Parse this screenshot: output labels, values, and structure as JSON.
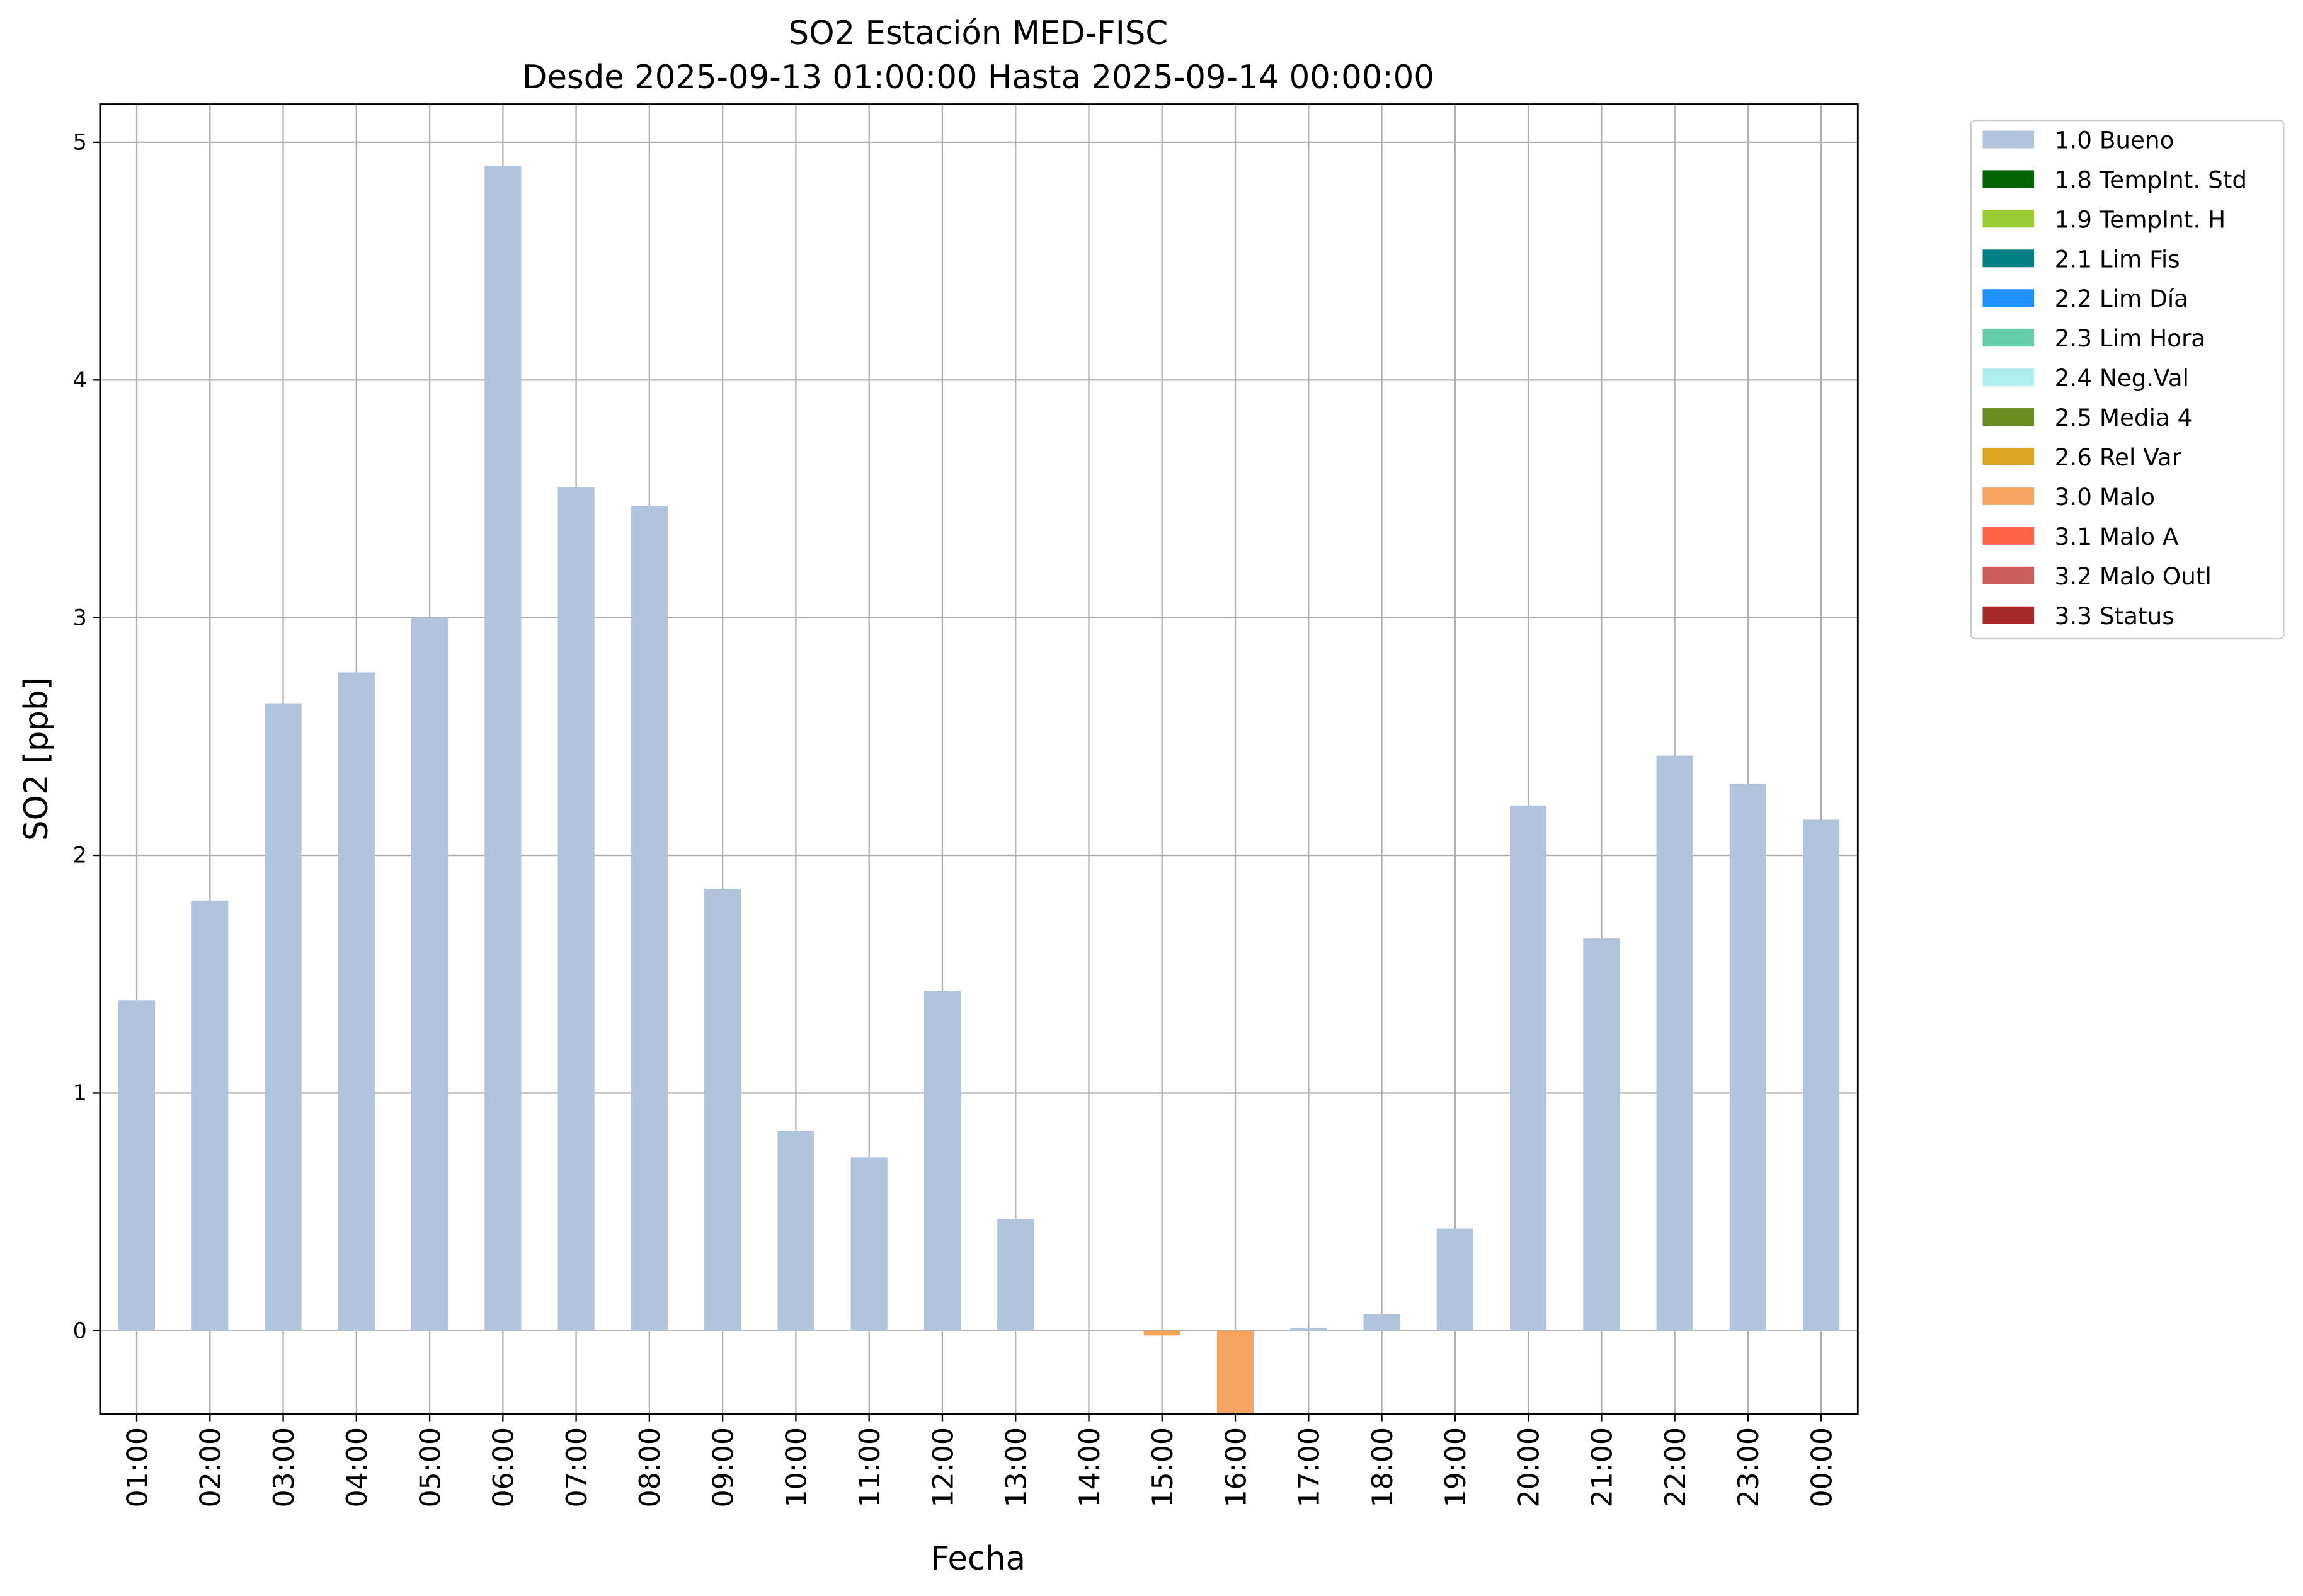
{
  "chart_data": {
    "type": "bar",
    "stacked": true,
    "title": "SO2 Estación MED-FISC",
    "subtitle": "Desde 2025-09-13 01:00:00 Hasta 2025-09-14 00:00:00",
    "x_label": "Fecha",
    "y_label": "SO2 [ppb]",
    "categories": [
      "01:00",
      "02:00",
      "03:00",
      "04:00",
      "05:00",
      "06:00",
      "07:00",
      "08:00",
      "09:00",
      "10:00",
      "11:00",
      "12:00",
      "13:00",
      "14:00",
      "15:00",
      "16:00",
      "17:00",
      "18:00",
      "19:00",
      "20:00",
      "21:00",
      "22:00",
      "23:00",
      "00:00"
    ],
    "ylim": [
      -0.35,
      5.16
    ],
    "yticks": [
      0,
      1,
      2,
      3,
      4,
      5
    ],
    "grid": true,
    "legend": "outside right",
    "series": [
      {
        "name": "1.0 Bueno",
        "color": "#b0c4de",
        "values": [
          1.39,
          1.81,
          2.64,
          2.77,
          3.0,
          4.9,
          3.55,
          3.47,
          1.86,
          0.84,
          0.73,
          1.43,
          0.47,
          null,
          null,
          null,
          0.01,
          0.07,
          0.43,
          2.21,
          1.65,
          2.42,
          2.3,
          2.15
        ]
      },
      {
        "name": "1.8 TempInt. Std",
        "color": "#006400",
        "values": [
          null,
          null,
          null,
          null,
          null,
          null,
          null,
          null,
          null,
          null,
          null,
          null,
          null,
          null,
          null,
          null,
          null,
          null,
          null,
          null,
          null,
          null,
          null,
          null
        ]
      },
      {
        "name": "1.9 TempInt. H",
        "color": "#9acd32",
        "values": [
          null,
          null,
          null,
          null,
          null,
          null,
          null,
          null,
          null,
          null,
          null,
          null,
          null,
          null,
          null,
          null,
          null,
          null,
          null,
          null,
          null,
          null,
          null,
          null
        ]
      },
      {
        "name": "2.1 Lim Fis",
        "color": "#008080",
        "values": [
          null,
          null,
          null,
          null,
          null,
          null,
          null,
          null,
          null,
          null,
          null,
          null,
          null,
          null,
          null,
          null,
          null,
          null,
          null,
          null,
          null,
          null,
          null,
          null
        ]
      },
      {
        "name": "2.2 Lim Día",
        "color": "#1e90ff",
        "values": [
          null,
          null,
          null,
          null,
          null,
          null,
          null,
          null,
          null,
          null,
          null,
          null,
          null,
          null,
          null,
          null,
          null,
          null,
          null,
          null,
          null,
          null,
          null,
          null
        ]
      },
      {
        "name": "2.3 Lim Hora",
        "color": "#66cdaa",
        "values": [
          null,
          null,
          null,
          null,
          null,
          null,
          null,
          null,
          null,
          null,
          null,
          null,
          null,
          null,
          null,
          null,
          null,
          null,
          null,
          null,
          null,
          null,
          null,
          null
        ]
      },
      {
        "name": "2.4 Neg.Val",
        "color": "#afeeee",
        "values": [
          null,
          null,
          null,
          null,
          null,
          null,
          null,
          null,
          null,
          null,
          null,
          null,
          null,
          null,
          null,
          null,
          null,
          null,
          null,
          null,
          null,
          null,
          null,
          null
        ]
      },
      {
        "name": "2.5 Media 4",
        "color": "#6b8e23",
        "values": [
          null,
          null,
          null,
          null,
          null,
          null,
          null,
          null,
          null,
          null,
          null,
          null,
          null,
          null,
          null,
          null,
          null,
          null,
          null,
          null,
          null,
          null,
          null,
          null
        ]
      },
      {
        "name": "2.6 Rel Var",
        "color": "#daa520",
        "values": [
          null,
          null,
          null,
          null,
          null,
          null,
          null,
          null,
          null,
          null,
          null,
          null,
          null,
          null,
          null,
          null,
          null,
          null,
          null,
          null,
          null,
          null,
          null,
          null
        ]
      },
      {
        "name": "3.0 Malo",
        "color": "#f4a460",
        "values": [
          null,
          null,
          null,
          null,
          null,
          null,
          null,
          null,
          null,
          null,
          null,
          null,
          null,
          null,
          -0.02,
          -0.4,
          null,
          null,
          null,
          null,
          null,
          null,
          null,
          null
        ]
      },
      {
        "name": "3.1 Malo A",
        "color": "#ff6347",
        "values": [
          null,
          null,
          null,
          null,
          null,
          null,
          null,
          null,
          null,
          null,
          null,
          null,
          null,
          null,
          null,
          null,
          null,
          null,
          null,
          null,
          null,
          null,
          null,
          null
        ]
      },
      {
        "name": "3.2 Malo Outl",
        "color": "#cd5c5c",
        "values": [
          null,
          null,
          null,
          null,
          null,
          null,
          null,
          null,
          null,
          null,
          null,
          null,
          null,
          null,
          null,
          null,
          null,
          null,
          null,
          null,
          null,
          null,
          null,
          null
        ]
      },
      {
        "name": "3.3 Status",
        "color": "#a52a2a",
        "values": [
          null,
          null,
          null,
          null,
          null,
          null,
          null,
          null,
          null,
          null,
          null,
          null,
          null,
          null,
          null,
          null,
          null,
          null,
          null,
          null,
          null,
          null,
          null,
          null
        ]
      }
    ]
  }
}
